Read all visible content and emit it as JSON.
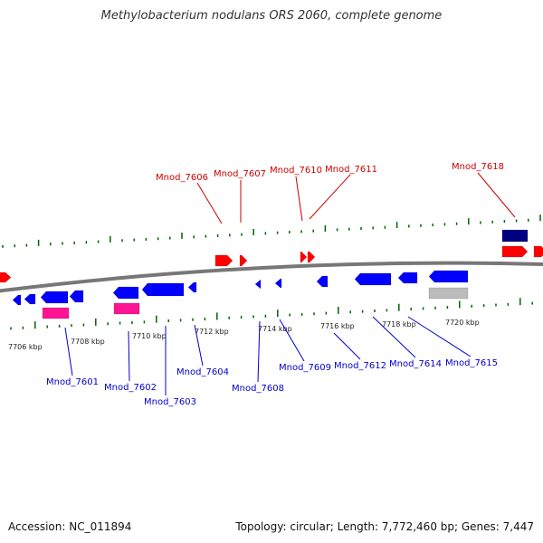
{
  "title": "Methylobacterium nodulans ORS 2060, complete genome",
  "footer": {
    "accession": "Accession: NC_011894",
    "summary": "Topology: circular; Length: 7,772,460 bp; Genes: 7,447"
  },
  "colors": {
    "forward_gene": "#ff0000",
    "reverse_gene": "#0000ff",
    "rna": "#ff1493",
    "pseudo": "#bbbbbb",
    "dark_feature": "#000080",
    "tick": "#006400",
    "backbone": "#777777",
    "forward_label": "#cc0000",
    "reverse_label": "#0000cc"
  },
  "scale": {
    "labels": [
      "7706 kbp",
      "7708 kbp",
      "7710 kbp",
      "7712 kbp",
      "7714 kbp",
      "7716 kbp",
      "7718 kbp",
      "7720 kbp"
    ]
  },
  "forward_labels": [
    "Mnod_7606",
    "Mnod_7607",
    "Mnod_7610",
    "Mnod_7611",
    "Mnod_7618"
  ],
  "reverse_labels": [
    "Mnod_7601",
    "Mnod_7602",
    "Mnod_7603",
    "Mnod_7604",
    "Mnod_7608",
    "Mnod_7609",
    "Mnod_7612",
    "Mnod_7614",
    "Mnod_7615"
  ]
}
